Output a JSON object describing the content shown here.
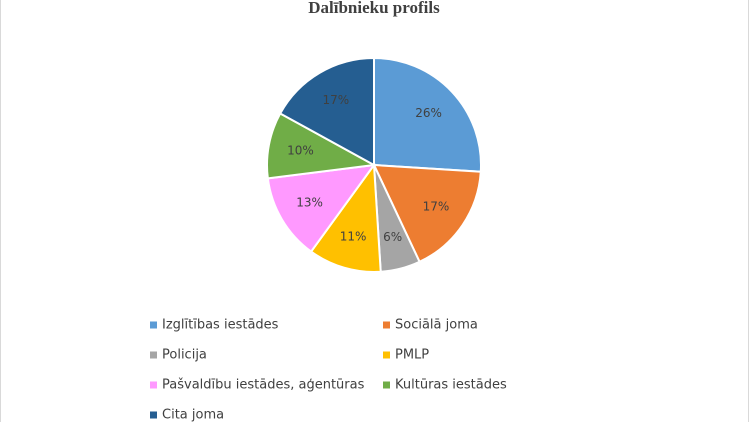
{
  "chart_data": {
    "type": "pie",
    "title": "Dalībnieku profils",
    "categories": [
      "Izglītības iestādes",
      "Sociālā joma",
      "Policija",
      "PMLP",
      "Pašvaldību iestādes, aģentūras",
      "Kultūras iestādes",
      "Cita joma"
    ],
    "values": [
      26,
      17,
      6,
      11,
      13,
      10,
      17
    ],
    "value_labels": [
      "26%",
      "17%",
      "6%",
      "11%",
      "13%",
      "10%",
      "17%"
    ],
    "colors": [
      "#5b9bd5",
      "#ed7d31",
      "#a5a5a5",
      "#ffc000",
      "#ff99ff",
      "#70ad47",
      "#255e91"
    ],
    "legend": "bottom"
  }
}
